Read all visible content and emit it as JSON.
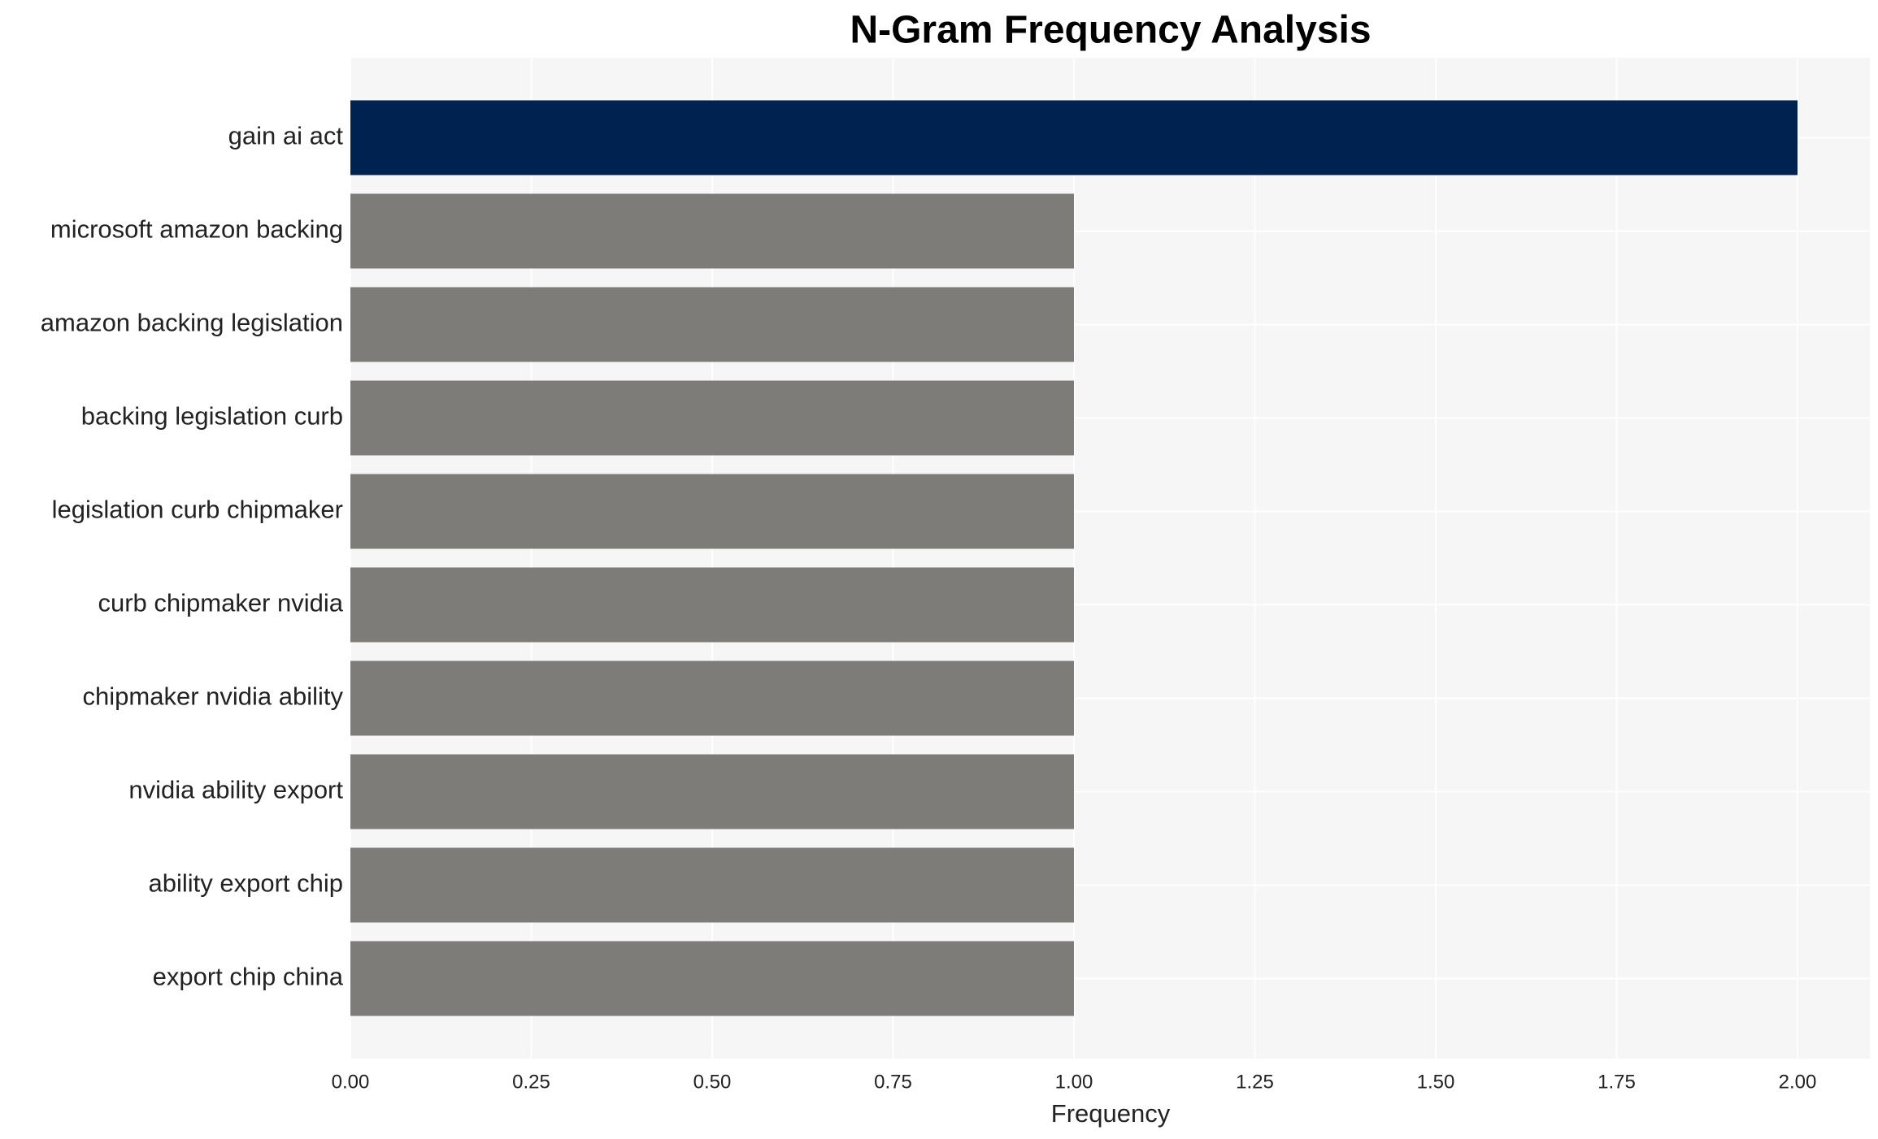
{
  "chart_data": {
    "type": "barh",
    "title": "N-Gram Frequency Analysis",
    "x_label": "Frequency",
    "categories": [
      "gain ai act",
      "microsoft amazon backing",
      "amazon backing legislation",
      "backing legislation curb",
      "legislation curb chipmaker",
      "curb chipmaker nvidia",
      "chipmaker nvidia ability",
      "nvidia ability export",
      "ability export chip",
      "export chip china"
    ],
    "values": [
      2,
      1,
      1,
      1,
      1,
      1,
      1,
      1,
      1,
      1
    ],
    "colors": [
      "#002251",
      "#7d7c78",
      "#7d7c78",
      "#7d7c78",
      "#7d7c78",
      "#7d7c78",
      "#7d7c78",
      "#7d7c78",
      "#7d7c78",
      "#7d7c78"
    ],
    "xlim": [
      0,
      2.1
    ],
    "xticks": [
      {
        "value": 0,
        "label": "0.00"
      },
      {
        "value": 0.25,
        "label": "0.25"
      },
      {
        "value": 0.5,
        "label": "0.50"
      },
      {
        "value": 0.75,
        "label": "0.75"
      },
      {
        "value": 1,
        "label": "1.00"
      },
      {
        "value": 1.25,
        "label": "1.25"
      },
      {
        "value": 1.5,
        "label": "1.50"
      },
      {
        "value": 1.75,
        "label": "1.75"
      },
      {
        "value": 2,
        "label": "2.00"
      }
    ],
    "grid": true
  }
}
